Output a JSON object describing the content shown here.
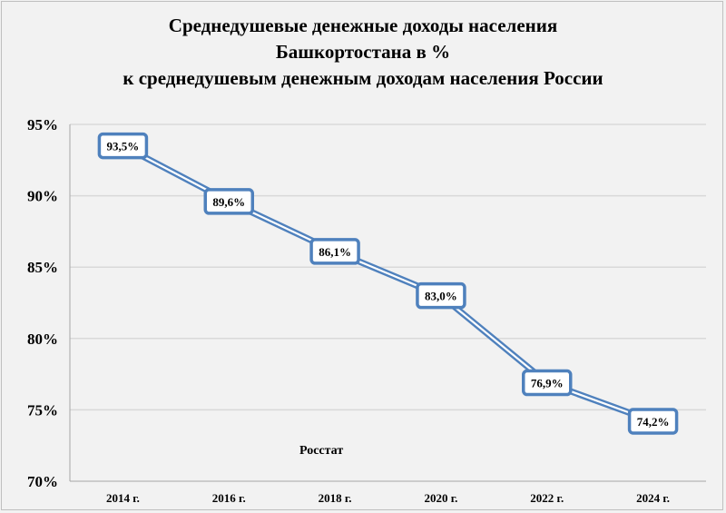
{
  "chart_data": {
    "type": "line",
    "title_lines": [
      "Среднедушевые денежные доходы населения",
      "Башкортостана в %",
      "к среднедушевым денежным доходам населения России"
    ],
    "categories": [
      "2014 г.",
      "2016 г.",
      "2018 г.",
      "2020 г.",
      "2022 г.",
      "2024 г."
    ],
    "series": [
      {
        "values": [
          93.5,
          89.6,
          86.1,
          83.0,
          76.9,
          74.2
        ],
        "labels": [
          "93,5%",
          "89,6%",
          "86,1%",
          "83,0%",
          "76,9%",
          "74,2%"
        ]
      }
    ],
    "yticks": [
      70,
      75,
      80,
      85,
      90,
      95
    ],
    "ytick_labels": [
      "70%",
      "75%",
      "80%",
      "85%",
      "90%",
      "95%"
    ],
    "ylim": [
      70,
      95
    ],
    "grid": true,
    "legend": "none",
    "annotation": "Росстат",
    "colors": {
      "line": "#4f81bd",
      "label_border": "#4f81bd",
      "grid": "#d9d9d9"
    }
  }
}
